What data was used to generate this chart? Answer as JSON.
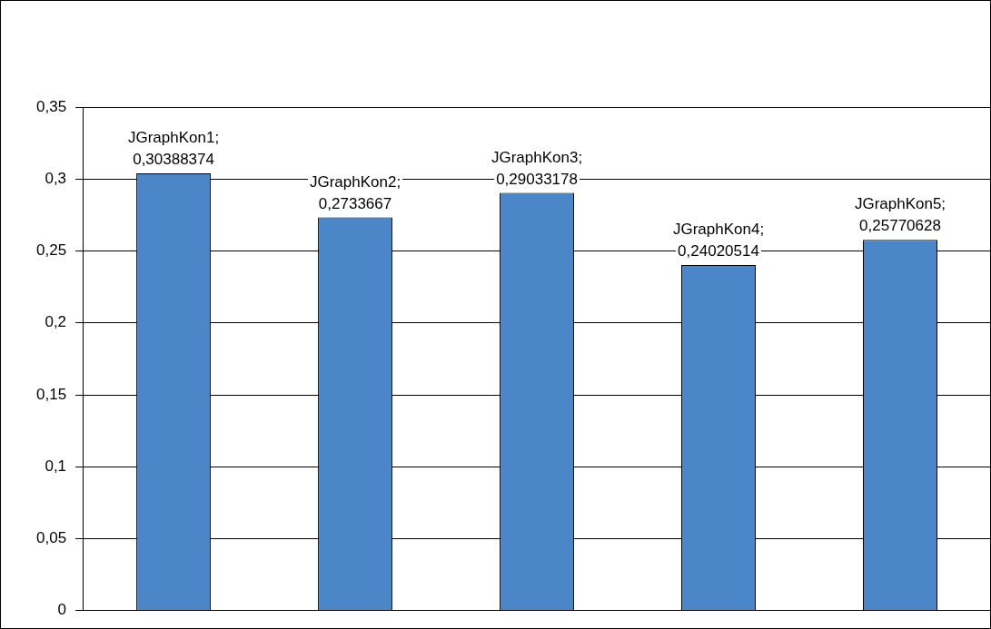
{
  "chart_data": {
    "type": "bar",
    "categories": [
      null,
      null,
      null,
      null,
      null
    ],
    "values": [
      0.30388374,
      0.2733667,
      0.29033178,
      0.24020514,
      0.25770628
    ],
    "value_labels": [
      "JGraphKon1; 0,30388374",
      "JGraphKon2; 0,2733667",
      "JGraphKon3; 0,29033178",
      "JGraphKon4; 0,24020514",
      "JGraphKon5; 0,25770628"
    ],
    "color": "#4a86c8",
    "ylim": [
      0,
      0.35
    ],
    "yticks": [
      {
        "value": 0,
        "label": "0"
      },
      {
        "value": 0.05,
        "label": "0,05"
      },
      {
        "value": 0.1,
        "label": "0,1"
      },
      {
        "value": 0.15,
        "label": "0,15"
      },
      {
        "value": 0.2,
        "label": "0,2"
      },
      {
        "value": 0.25,
        "label": "0,25"
      },
      {
        "value": 0.3,
        "label": "0,3"
      },
      {
        "value": 0.35,
        "label": "0,35"
      }
    ],
    "grid": "y",
    "legend": false,
    "tick_labels": "y"
  }
}
